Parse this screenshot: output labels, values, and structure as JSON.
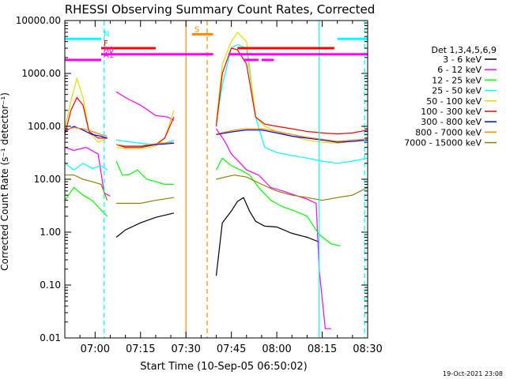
{
  "chart_data": {
    "type": "line",
    "title": "RHESSI Observing Summary Count Rates, Corrected",
    "xlabel": "Start Time (10-Sep-05 06:50:02)",
    "ylabel": "Corrected Count Rate (s⁻¹ detector⁻¹)",
    "y_scale": "log",
    "ylim": [
      0.01,
      10000
    ],
    "xlim_minutes": [
      0,
      100
    ],
    "x_ticks": [
      {
        "m": 10,
        "label": "07:00"
      },
      {
        "m": 25,
        "label": "07:15"
      },
      {
        "m": 40,
        "label": "07:30"
      },
      {
        "m": 55,
        "label": "07:45"
      },
      {
        "m": 70,
        "label": "08:00"
      },
      {
        "m": 85,
        "label": "08:15"
      },
      {
        "m": 100,
        "label": "08:30"
      }
    ],
    "y_ticks": [
      {
        "v": 10000,
        "label": "10000.00"
      },
      {
        "v": 1000,
        "label": "1000.00"
      },
      {
        "v": 100,
        "label": "100.00"
      },
      {
        "v": 10,
        "label": "10.00"
      },
      {
        "v": 1,
        "label": "1.00"
      },
      {
        "v": 0.1,
        "label": "0.10"
      },
      {
        "v": 0.01,
        "label": "0.01"
      }
    ],
    "legend_title": "Det 1,3,4,5,6,9",
    "series": [
      {
        "name": "3 - 6 keV",
        "color": "#000000",
        "segments": [
          [
            [
              17,
              0.8
            ],
            [
              20,
              1.1
            ],
            [
              25,
              1.5
            ],
            [
              30,
              1.9
            ],
            [
              36,
              2.3
            ]
          ],
          [
            [
              50,
              0.15
            ],
            [
              52,
              1.5
            ],
            [
              55,
              2.5
            ],
            [
              57,
              3.8
            ],
            [
              59,
              4.5
            ],
            [
              61,
              2.5
            ],
            [
              63,
              1.6
            ],
            [
              66,
              1.3
            ],
            [
              70,
              1.25
            ],
            [
              75,
              0.95
            ],
            [
              80,
              0.8
            ],
            [
              84,
              0.65
            ]
          ]
        ]
      },
      {
        "name": "6 - 12 keV",
        "color": "#ff00ff",
        "segments": [
          [
            [
              0,
              40
            ],
            [
              3,
              35
            ],
            [
              7,
              40
            ],
            [
              11,
              30
            ],
            [
              13,
              5.5
            ],
            [
              15,
              4.8
            ]
          ],
          [
            [
              17,
              450
            ],
            [
              20,
              350
            ],
            [
              25,
              250
            ],
            [
              30,
              160
            ],
            [
              34,
              150
            ],
            [
              36,
              130
            ]
          ],
          [
            [
              50,
              90
            ],
            [
              53,
              50
            ],
            [
              55,
              30
            ],
            [
              58,
              20
            ],
            [
              60,
              15
            ],
            [
              64,
              12
            ],
            [
              68,
              7
            ],
            [
              72,
              6
            ],
            [
              76,
              5
            ],
            [
              80,
              4.2
            ],
            [
              83,
              3.5
            ],
            [
              84,
              0.2
            ],
            [
              86,
              0.015
            ],
            [
              88,
              0.015
            ]
          ]
        ]
      },
      {
        "name": "12 - 25 keV",
        "color": "#00ff00",
        "segments": [
          [
            [
              0,
              4
            ],
            [
              3,
              7
            ],
            [
              6,
              5
            ],
            [
              9,
              4
            ],
            [
              11,
              3
            ],
            [
              14,
              2
            ]
          ],
          [
            [
              17,
              22
            ],
            [
              19,
              12
            ],
            [
              21,
              12
            ],
            [
              24,
              15
            ],
            [
              27,
              10
            ],
            [
              30,
              9
            ],
            [
              33,
              8
            ],
            [
              36,
              8
            ]
          ],
          [
            [
              50,
              15
            ],
            [
              52,
              25
            ],
            [
              55,
              18
            ],
            [
              58,
              15
            ],
            [
              61,
              12
            ],
            [
              64,
              7
            ],
            [
              68,
              4
            ],
            [
              72,
              3
            ],
            [
              76,
              2.5
            ],
            [
              80,
              2
            ],
            [
              84,
              0.9
            ],
            [
              88,
              0.6
            ],
            [
              91,
              0.55
            ]
          ]
        ]
      },
      {
        "name": "25 - 50 keV",
        "color": "#00ffff",
        "segments": [
          [
            [
              0,
              20
            ],
            [
              3,
              15
            ],
            [
              6,
              20
            ],
            [
              9,
              16
            ],
            [
              12,
              18
            ],
            [
              14,
              15
            ]
          ],
          [
            [
              17,
              55
            ],
            [
              20,
              52
            ],
            [
              25,
              48
            ],
            [
              30,
              45
            ],
            [
              34,
              50
            ],
            [
              36,
              55
            ]
          ],
          [
            [
              50,
              120
            ],
            [
              52,
              600
            ],
            [
              55,
              3000
            ],
            [
              57,
              3500
            ],
            [
              60,
              3000
            ],
            [
              63,
              150
            ],
            [
              66,
              40
            ],
            [
              70,
              32
            ],
            [
              75,
              28
            ],
            [
              80,
              25
            ],
            [
              85,
              22
            ],
            [
              90,
              20
            ],
            [
              95,
              22
            ],
            [
              100,
              25
            ]
          ]
        ]
      },
      {
        "name": "50 - 100 keV",
        "color": "#dddd00",
        "segments": [
          [
            [
              0,
              90
            ],
            [
              2,
              300
            ],
            [
              4,
              800
            ],
            [
              6,
              350
            ],
            [
              8,
              80
            ],
            [
              11,
              50
            ],
            [
              14,
              60
            ]
          ],
          [
            [
              17,
              40
            ],
            [
              20,
              38
            ],
            [
              25,
              38
            ],
            [
              30,
              42
            ],
            [
              33,
              60
            ],
            [
              36,
              200
            ]
          ],
          [
            [
              50,
              120
            ],
            [
              52,
              1500
            ],
            [
              55,
              4000
            ],
            [
              57,
              6000
            ],
            [
              60,
              4000
            ],
            [
              63,
              150
            ],
            [
              66,
              100
            ],
            [
              70,
              80
            ],
            [
              75,
              65
            ],
            [
              80,
              55
            ],
            [
              85,
              50
            ],
            [
              90,
              48
            ],
            [
              95,
              52
            ],
            [
              100,
              55
            ]
          ]
        ]
      },
      {
        "name": "100 - 300 keV",
        "color": "#ff0000",
        "segments": [
          [
            [
              0,
              70
            ],
            [
              2,
              200
            ],
            [
              4,
              350
            ],
            [
              6,
              250
            ],
            [
              8,
              80
            ],
            [
              11,
              60
            ],
            [
              14,
              60
            ]
          ],
          [
            [
              17,
              45
            ],
            [
              20,
              40
            ],
            [
              25,
              40
            ],
            [
              30,
              45
            ],
            [
              33,
              60
            ],
            [
              36,
              150
            ]
          ],
          [
            [
              50,
              100
            ],
            [
              52,
              1000
            ],
            [
              55,
              3000
            ],
            [
              57,
              2800
            ],
            [
              60,
              1500
            ],
            [
              63,
              150
            ],
            [
              66,
              110
            ],
            [
              70,
              100
            ],
            [
              75,
              90
            ],
            [
              80,
              80
            ],
            [
              85,
              75
            ],
            [
              90,
              72
            ],
            [
              95,
              75
            ],
            [
              100,
              85
            ]
          ]
        ]
      },
      {
        "name": "300 - 800 keV",
        "color": "#0000ff",
        "segments": [
          [
            [
              0,
              80
            ],
            [
              3,
              100
            ],
            [
              6,
              85
            ],
            [
              9,
              70
            ],
            [
              12,
              65
            ],
            [
              14,
              60
            ]
          ],
          [
            [
              17,
              45
            ],
            [
              20,
              42
            ],
            [
              25,
              42
            ],
            [
              30,
              45
            ],
            [
              36,
              48
            ]
          ],
          [
            [
              50,
              70
            ],
            [
              53,
              75
            ],
            [
              56,
              80
            ],
            [
              60,
              85
            ],
            [
              65,
              85
            ],
            [
              70,
              75
            ],
            [
              75,
              65
            ],
            [
              80,
              60
            ],
            [
              85,
              55
            ],
            [
              90,
              50
            ],
            [
              95,
              52
            ],
            [
              100,
              55
            ]
          ]
        ]
      },
      {
        "name": "800 - 7000 keV",
        "color": "#ff8800",
        "segments": [
          [
            [
              0,
              85
            ],
            [
              3,
              95
            ],
            [
              6,
              90
            ],
            [
              9,
              80
            ],
            [
              12,
              70
            ],
            [
              14,
              65
            ]
          ],
          [
            [
              17,
              45
            ],
            [
              20,
              43
            ],
            [
              25,
              43
            ],
            [
              30,
              47
            ],
            [
              36,
              50
            ]
          ],
          [
            [
              50,
              72
            ],
            [
              53,
              78
            ],
            [
              56,
              85
            ],
            [
              60,
              90
            ],
            [
              65,
              90
            ],
            [
              70,
              80
            ],
            [
              75,
              70
            ],
            [
              80,
              62
            ],
            [
              85,
              57
            ],
            [
              90,
              52
            ],
            [
              95,
              55
            ],
            [
              100,
              58
            ]
          ]
        ]
      },
      {
        "name": "7000 - 15000 keV",
        "color": "#8b8000",
        "segments": [
          [
            [
              0,
              12
            ],
            [
              3,
              12
            ],
            [
              6,
              10
            ],
            [
              9,
              9
            ],
            [
              12,
              8
            ],
            [
              14,
              4
            ]
          ],
          [
            [
              17,
              3.5
            ],
            [
              20,
              3.5
            ],
            [
              25,
              3.5
            ],
            [
              30,
              4
            ],
            [
              36,
              4.5
            ]
          ],
          [
            [
              50,
              10
            ],
            [
              53,
              11
            ],
            [
              56,
              12
            ],
            [
              60,
              11
            ],
            [
              65,
              8
            ],
            [
              70,
              6
            ],
            [
              75,
              5
            ],
            [
              80,
              4.5
            ],
            [
              85,
              4
            ],
            [
              90,
              4.5
            ],
            [
              95,
              5
            ],
            [
              100,
              7
            ]
          ]
        ]
      }
    ],
    "state_bars": [
      {
        "label": "N",
        "color": "#00ffff",
        "v": 4500,
        "segments": [
          [
            0,
            12
          ],
          [
            90,
            100
          ]
        ]
      },
      {
        "label": "S",
        "color": "#ff8800",
        "v": 5500,
        "segments": [
          [
            42,
            49
          ]
        ]
      },
      {
        "label": "F",
        "color": "#ff0000",
        "v": 3000,
        "segments": [
          [
            12,
            30
          ],
          [
            57,
            89
          ]
        ]
      },
      {
        "label": "A0",
        "color": "#ff00ff",
        "v": 2300,
        "segments": [
          [
            12,
            49
          ],
          [
            54,
            100
          ]
        ]
      },
      {
        "label": "A1",
        "color": "#ff00ff",
        "v": 1800,
        "segments": [
          [
            0,
            12
          ],
          [
            59,
            64
          ],
          [
            65,
            69
          ]
        ]
      }
    ],
    "vertical_markers": [
      {
        "m": 13,
        "color": "#00ffff",
        "style": "dashed"
      },
      {
        "m": 40,
        "color": "#ff8800",
        "style": "solid"
      },
      {
        "m": 47,
        "color": "#ff8800",
        "style": "dashed"
      },
      {
        "m": 84,
        "color": "#00ffff",
        "style": "solid"
      },
      {
        "m": 99,
        "color": "#00ffff",
        "style": "dashed"
      }
    ]
  },
  "footer": {
    "date": "19-Oct-2021 23:08"
  }
}
